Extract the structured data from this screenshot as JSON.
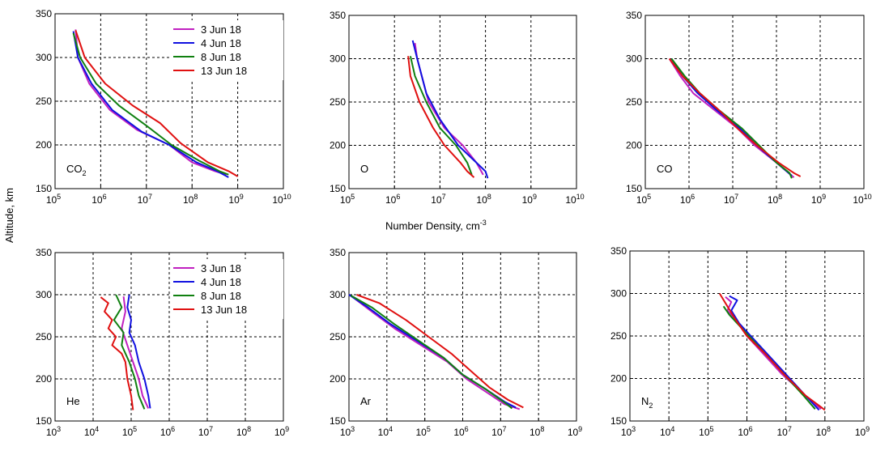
{
  "figure": {
    "ylabel": "Altitude, km",
    "xlabel_main": "Number Density, cm",
    "xlabel_exp": "-3"
  },
  "chart_data": [
    {
      "id": "co2",
      "type": "line",
      "species_label": "CO",
      "species_sub": "2",
      "xlog_range": [
        5,
        10
      ],
      "ylim": [
        150,
        350
      ],
      "yticks": [
        150,
        200,
        250,
        300,
        350
      ],
      "legend": true,
      "series": [
        {
          "name": "3 Jun 18",
          "color": "#c020c0",
          "points": [
            [
              5.45,
              332
            ],
            [
              5.5,
              300
            ],
            [
              5.75,
              270
            ],
            [
              6.2,
              240
            ],
            [
              6.8,
              217
            ],
            [
              7.5,
              200
            ],
            [
              8.0,
              180
            ],
            [
              8.5,
              170
            ],
            [
              8.75,
              166
            ]
          ]
        },
        {
          "name": "4 Jun 18",
          "color": "#1010e0",
          "points": [
            [
              5.4,
              330
            ],
            [
              5.5,
              300
            ],
            [
              5.8,
              270
            ],
            [
              6.25,
              240
            ],
            [
              6.9,
              215
            ],
            [
              7.5,
              200
            ],
            [
              8.1,
              180
            ],
            [
              8.55,
              170
            ],
            [
              8.8,
              163
            ]
          ]
        },
        {
          "name": "8 Jun 18",
          "color": "#108010",
          "points": [
            [
              5.4,
              328
            ],
            [
              5.55,
              300
            ],
            [
              5.9,
              270
            ],
            [
              6.4,
              245
            ],
            [
              7.0,
              222
            ],
            [
              7.55,
              200
            ],
            [
              8.15,
              182
            ],
            [
              8.6,
              170
            ],
            [
              8.8,
              166
            ]
          ]
        },
        {
          "name": "13 Jun 18",
          "color": "#e01010",
          "points": [
            [
              5.45,
              331
            ],
            [
              5.65,
              300
            ],
            [
              6.1,
              270
            ],
            [
              6.7,
              245
            ],
            [
              7.3,
              225
            ],
            [
              7.75,
              202
            ],
            [
              8.35,
              180
            ],
            [
              8.8,
              170
            ],
            [
              9.0,
              164
            ]
          ]
        }
      ]
    },
    {
      "id": "o",
      "type": "line",
      "species_label": "O",
      "species_sub": "",
      "xlog_range": [
        5,
        10
      ],
      "ylim": [
        150,
        350
      ],
      "yticks": [
        150,
        200,
        250,
        300,
        350
      ],
      "legend": false,
      "series": [
        {
          "name": "3 Jun 18",
          "color": "#c020c0",
          "points": [
            [
              6.45,
              318
            ],
            [
              6.5,
              300
            ],
            [
              6.75,
              250
            ],
            [
              7.1,
              220
            ],
            [
              7.5,
              200
            ],
            [
              7.8,
              180
            ],
            [
              7.95,
              166
            ]
          ]
        },
        {
          "name": "4 Jun 18",
          "color": "#1010e0",
          "points": [
            [
              6.4,
              321
            ],
            [
              6.5,
              300
            ],
            [
              6.7,
              260
            ],
            [
              7.0,
              230
            ],
            [
              7.4,
              200
            ],
            [
              7.8,
              180
            ],
            [
              8.0,
              170
            ],
            [
              8.05,
              162
            ]
          ]
        },
        {
          "name": "8 Jun 18",
          "color": "#108010",
          "points": [
            [
              6.35,
              303
            ],
            [
              6.45,
              280
            ],
            [
              6.7,
              250
            ],
            [
              7.0,
              220
            ],
            [
              7.35,
              200
            ],
            [
              7.6,
              180
            ],
            [
              7.7,
              166
            ]
          ]
        },
        {
          "name": "13 Jun 18",
          "color": "#e01010",
          "points": [
            [
              6.3,
              303
            ],
            [
              6.35,
              280
            ],
            [
              6.55,
              250
            ],
            [
              6.85,
              220
            ],
            [
              7.1,
              200
            ],
            [
              7.45,
              180
            ],
            [
              7.6,
              170
            ],
            [
              7.75,
              163
            ]
          ]
        }
      ]
    },
    {
      "id": "co",
      "type": "line",
      "species_label": "CO",
      "species_sub": "",
      "xlog_range": [
        5,
        10
      ],
      "ylim": [
        150,
        350
      ],
      "yticks": [
        150,
        200,
        250,
        300,
        350
      ],
      "legend": false,
      "series": [
        {
          "name": "3 Jun 18",
          "color": "#c020c0",
          "points": [
            [
              5.55,
              300
            ],
            [
              5.8,
              280
            ],
            [
              6.1,
              260
            ],
            [
              6.6,
              240
            ],
            [
              7.1,
              220
            ],
            [
              7.5,
              200
            ],
            [
              8.0,
              180
            ],
            [
              8.3,
              167
            ],
            [
              8.4,
              163
            ]
          ]
        },
        {
          "name": "4 Jun 18",
          "color": "#1010e0",
          "points": [
            [
              5.6,
              300
            ],
            [
              5.85,
              280
            ],
            [
              6.2,
              260
            ],
            [
              6.65,
              240
            ],
            [
              7.15,
              220
            ],
            [
              7.55,
              200
            ],
            [
              8.0,
              180
            ],
            [
              8.35,
              165
            ]
          ]
        },
        {
          "name": "8 Jun 18",
          "color": "#108010",
          "points": [
            [
              5.6,
              300
            ],
            [
              5.9,
              280
            ],
            [
              6.25,
              260
            ],
            [
              6.7,
              240
            ],
            [
              7.2,
              220
            ],
            [
              7.6,
              200
            ],
            [
              8.0,
              180
            ],
            [
              8.3,
              168
            ],
            [
              8.35,
              162
            ]
          ]
        },
        {
          "name": "13 Jun 18",
          "color": "#e01010",
          "points": [
            [
              5.55,
              300
            ],
            [
              5.85,
              280
            ],
            [
              6.25,
              260
            ],
            [
              6.7,
              240
            ],
            [
              7.1,
              220
            ],
            [
              7.55,
              200
            ],
            [
              8.05,
              180
            ],
            [
              8.4,
              168
            ],
            [
              8.55,
              164
            ]
          ]
        }
      ]
    },
    {
      "id": "he",
      "type": "line",
      "species_label": "He",
      "species_sub": "",
      "xlog_range": [
        3,
        9
      ],
      "ylim": [
        150,
        350
      ],
      "yticks": [
        150,
        200,
        250,
        300,
        350
      ],
      "legend": true,
      "series": [
        {
          "name": "3 Jun 18",
          "color": "#c020c0",
          "points": [
            [
              4.8,
              298
            ],
            [
              4.85,
              280
            ],
            [
              4.75,
              260
            ],
            [
              4.9,
              240
            ],
            [
              5.05,
              220
            ],
            [
              5.2,
              200
            ],
            [
              5.3,
              180
            ],
            [
              5.45,
              165
            ]
          ]
        },
        {
          "name": "4 Jun 18",
          "color": "#1010e0",
          "points": [
            [
              4.95,
              300
            ],
            [
              4.9,
              285
            ],
            [
              5.0,
              270
            ],
            [
              4.95,
              255
            ],
            [
              5.1,
              240
            ],
            [
              5.2,
              220
            ],
            [
              5.35,
              200
            ],
            [
              5.45,
              180
            ],
            [
              5.5,
              165
            ]
          ]
        },
        {
          "name": "8 Jun 18",
          "color": "#108010",
          "points": [
            [
              4.6,
              300
            ],
            [
              4.75,
              285
            ],
            [
              4.55,
              270
            ],
            [
              4.8,
              255
            ],
            [
              4.75,
              240
            ],
            [
              4.95,
              220
            ],
            [
              5.1,
              200
            ],
            [
              5.2,
              180
            ],
            [
              5.35,
              164
            ]
          ]
        },
        {
          "name": "13 Jun 18",
          "color": "#e01010",
          "points": [
            [
              4.2,
              297
            ],
            [
              4.4,
              290
            ],
            [
              4.3,
              280
            ],
            [
              4.5,
              270
            ],
            [
              4.4,
              260
            ],
            [
              4.6,
              250
            ],
            [
              4.5,
              240
            ],
            [
              4.75,
              230
            ],
            [
              4.85,
              220
            ],
            [
              4.9,
              200
            ],
            [
              5.0,
              180
            ],
            [
              5.05,
              163
            ]
          ]
        }
      ]
    },
    {
      "id": "ar",
      "type": "line",
      "species_label": "Ar",
      "species_sub": "",
      "xlog_range": [
        3,
        9
      ],
      "ylim": [
        150,
        350
      ],
      "yticks": [
        150,
        200,
        250,
        300,
        350
      ],
      "legend": false,
      "series": [
        {
          "name": "3 Jun 18",
          "color": "#c020c0",
          "points": [
            [
              3.1,
              297
            ],
            [
              3.6,
              280
            ],
            [
              4.2,
              260
            ],
            [
              4.9,
              240
            ],
            [
              5.6,
              220
            ],
            [
              6.1,
              200
            ],
            [
              6.6,
              185
            ],
            [
              7.1,
              170
            ],
            [
              7.5,
              164
            ]
          ]
        },
        {
          "name": "4 Jun 18",
          "color": "#1010e0",
          "points": [
            [
              3.0,
              300
            ],
            [
              3.5,
              285
            ],
            [
              4.1,
              265
            ],
            [
              4.8,
              245
            ],
            [
              5.5,
              225
            ],
            [
              6.0,
              205
            ],
            [
              6.6,
              188
            ],
            [
              7.1,
              173
            ],
            [
              7.4,
              166
            ]
          ]
        },
        {
          "name": "8 Jun 18",
          "color": "#108010",
          "points": [
            [
              3.05,
              299
            ],
            [
              3.6,
              285
            ],
            [
              4.2,
              265
            ],
            [
              4.85,
              245
            ],
            [
              5.5,
              225
            ],
            [
              6.0,
              205
            ],
            [
              6.6,
              188
            ],
            [
              7.1,
              172
            ],
            [
              7.3,
              165
            ]
          ]
        },
        {
          "name": "13 Jun 18",
          "color": "#e01010",
          "points": [
            [
              3.2,
              300
            ],
            [
              3.8,
              290
            ],
            [
              4.5,
              270
            ],
            [
              5.1,
              250
            ],
            [
              5.7,
              230
            ],
            [
              6.2,
              210
            ],
            [
              6.7,
              190
            ],
            [
              7.2,
              175
            ],
            [
              7.6,
              166
            ]
          ]
        }
      ]
    },
    {
      "id": "n2",
      "type": "line",
      "species_label": "N",
      "species_sub": "2",
      "xlog_range": [
        3,
        9
      ],
      "ylim": [
        150,
        350
      ],
      "yticks": [
        150,
        200,
        250,
        300,
        350
      ],
      "legend": false,
      "series": [
        {
          "name": "3 Jun 18",
          "color": "#c020c0",
          "points": [
            [
              5.45,
              296
            ],
            [
              5.6,
              290
            ],
            [
              5.5,
              280
            ],
            [
              5.7,
              270
            ],
            [
              6.0,
              250
            ],
            [
              6.4,
              230
            ],
            [
              6.9,
              205
            ],
            [
              7.5,
              180
            ],
            [
              7.9,
              164
            ]
          ]
        },
        {
          "name": "4 Jun 18",
          "color": "#1010e0",
          "points": [
            [
              5.55,
              297
            ],
            [
              5.75,
              292
            ],
            [
              5.6,
              280
            ],
            [
              5.8,
              265
            ],
            [
              6.1,
              250
            ],
            [
              6.5,
              230
            ],
            [
              7.0,
              205
            ],
            [
              7.5,
              180
            ],
            [
              7.85,
              163
            ]
          ]
        },
        {
          "name": "8 Jun 18",
          "color": "#108010",
          "points": [
            [
              5.4,
              285
            ],
            [
              5.55,
              275
            ],
            [
              5.75,
              265
            ],
            [
              6.05,
              250
            ],
            [
              6.45,
              230
            ],
            [
              6.95,
              205
            ],
            [
              7.45,
              180
            ],
            [
              7.75,
              164
            ]
          ]
        },
        {
          "name": "13 Jun 18",
          "color": "#e01010",
          "points": [
            [
              5.3,
              300
            ],
            [
              5.5,
              285
            ],
            [
              5.7,
              270
            ],
            [
              6.0,
              250
            ],
            [
              6.45,
              230
            ],
            [
              6.95,
              205
            ],
            [
              7.5,
              180
            ],
            [
              8.0,
              163
            ]
          ]
        }
      ]
    }
  ]
}
